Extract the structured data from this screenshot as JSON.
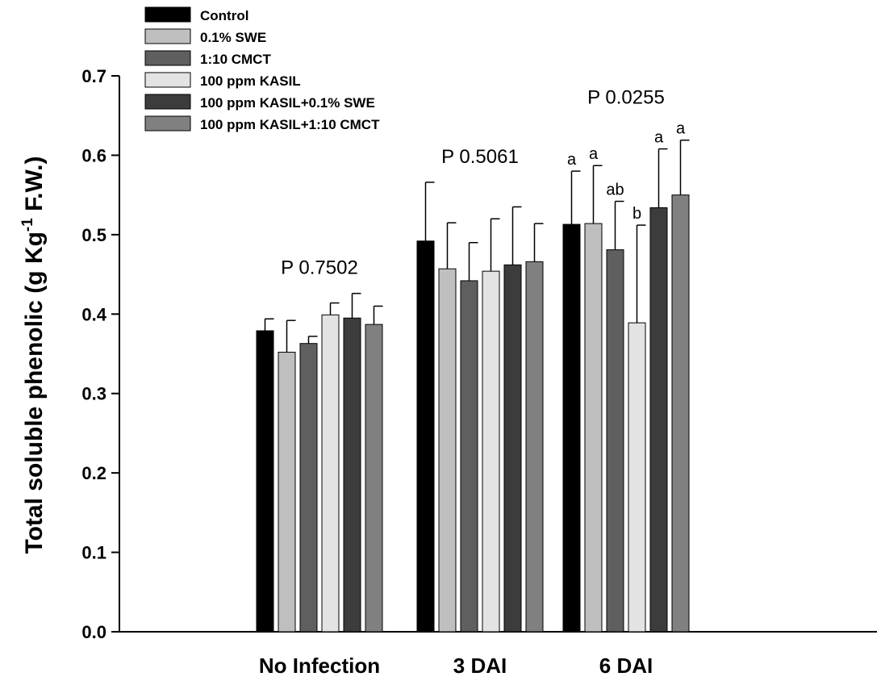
{
  "chart_data": {
    "type": "bar",
    "title": "",
    "xlabel": "",
    "ylabel": "Total soluble phenolic (g Kg",
    "ylabel_superscript": "-1",
    "ylabel_suffix": " F.W.)",
    "ylim": [
      0.0,
      0.7
    ],
    "yticks": [
      "0.0",
      "0.1",
      "0.2",
      "0.3",
      "0.4",
      "0.5",
      "0.6",
      "0.7"
    ],
    "ytick_values": [
      0.0,
      0.1,
      0.2,
      0.3,
      0.4,
      0.5,
      0.6,
      0.7
    ],
    "categories": [
      "No Infection",
      "3 DAI",
      "6 DAI"
    ],
    "legend_position": "top-left",
    "grid": false,
    "series": [
      {
        "name": "Control",
        "color": "#000000",
        "values": [
          0.379,
          0.492,
          0.513
        ],
        "errors": [
          0.015,
          0.074,
          0.067
        ],
        "letters": [
          "",
          "",
          "a"
        ]
      },
      {
        "name": "0.1% SWE",
        "color": "#bfbfbf",
        "values": [
          0.352,
          0.457,
          0.514
        ],
        "errors": [
          0.04,
          0.058,
          0.073
        ],
        "letters": [
          "",
          "",
          "a"
        ]
      },
      {
        "name": "1:10 CMCT",
        "color": "#5f5f5f",
        "values": [
          0.363,
          0.442,
          0.481
        ],
        "errors": [
          0.009,
          0.048,
          0.061
        ],
        "letters": [
          "",
          "",
          "ab"
        ]
      },
      {
        "name": "100 ppm KASIL",
        "color": "#e3e3e3",
        "values": [
          0.399,
          0.454,
          0.389
        ],
        "errors": [
          0.015,
          0.066,
          0.123
        ],
        "letters": [
          "",
          "",
          "b"
        ]
      },
      {
        "name": "100 ppm KASIL+0.1% SWE",
        "color": "#3c3c3c",
        "values": [
          0.395,
          0.462,
          0.534
        ],
        "errors": [
          0.031,
          0.073,
          0.074
        ],
        "letters": [
          "",
          "",
          "a"
        ]
      },
      {
        "name": "100 ppm KASIL+1:10 CMCT",
        "color": "#808080",
        "values": [
          0.387,
          0.466,
          0.55
        ],
        "errors": [
          0.023,
          0.048,
          0.069
        ],
        "letters": [
          "",
          "",
          "a"
        ]
      }
    ],
    "p_values": [
      "P 0.7502",
      "P 0.5061",
      "P 0.0255"
    ]
  }
}
